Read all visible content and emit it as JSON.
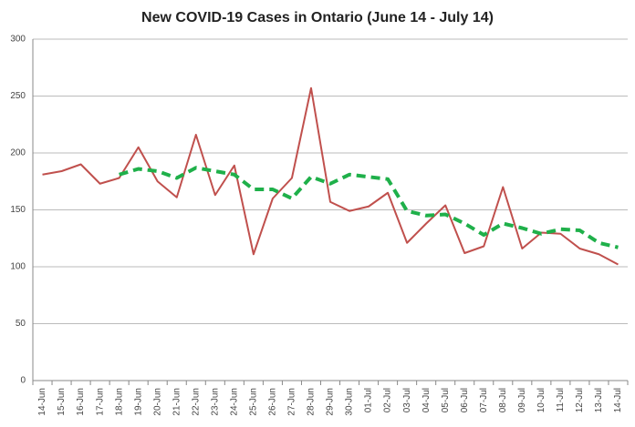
{
  "chart_data": {
    "type": "line",
    "title": "New COVID-19 Cases in Ontario (June 14 - July 14)",
    "categories": [
      "14-Jun",
      "15-Jun",
      "16-Jun",
      "17-Jun",
      "18-Jun",
      "19-Jun",
      "20-Jun",
      "21-Jun",
      "22-Jun",
      "23-Jun",
      "24-Jun",
      "25-Jun",
      "26-Jun",
      "27-Jun",
      "28-Jun",
      "29-Jun",
      "30-Jun",
      "01-Jul",
      "02-Jul",
      "03-Jul",
      "04-Jul",
      "05-Jul",
      "06-Jul",
      "07-Jul",
      "08-Jul",
      "09-Jul",
      "10-Jul",
      "11-Jul",
      "12-Jul",
      "13-Jul",
      "14-Jul"
    ],
    "series": [
      {
        "color": "#c0504d",
        "dashed": false,
        "values": [
          181,
          184,
          190,
          173,
          178,
          205,
          175,
          161,
          216,
          163,
          189,
          111,
          160,
          178,
          257,
          157,
          149,
          153,
          165,
          121,
          138,
          154,
          112,
          118,
          170,
          116,
          130,
          129,
          116,
          111,
          102
        ]
      },
      {
        "color": "#1fb04a",
        "dashed": true,
        "values": [
          null,
          null,
          null,
          null,
          181,
          186,
          184,
          178,
          187,
          184,
          181,
          168,
          168,
          160,
          179,
          173,
          181,
          179,
          177,
          149,
          145,
          146,
          138,
          128,
          138,
          134,
          129,
          133,
          132,
          121,
          117
        ]
      }
    ],
    "ylim": [
      0,
      300
    ],
    "yticks": [
      0,
      50,
      100,
      150,
      200,
      250,
      300
    ],
    "grid": true
  }
}
